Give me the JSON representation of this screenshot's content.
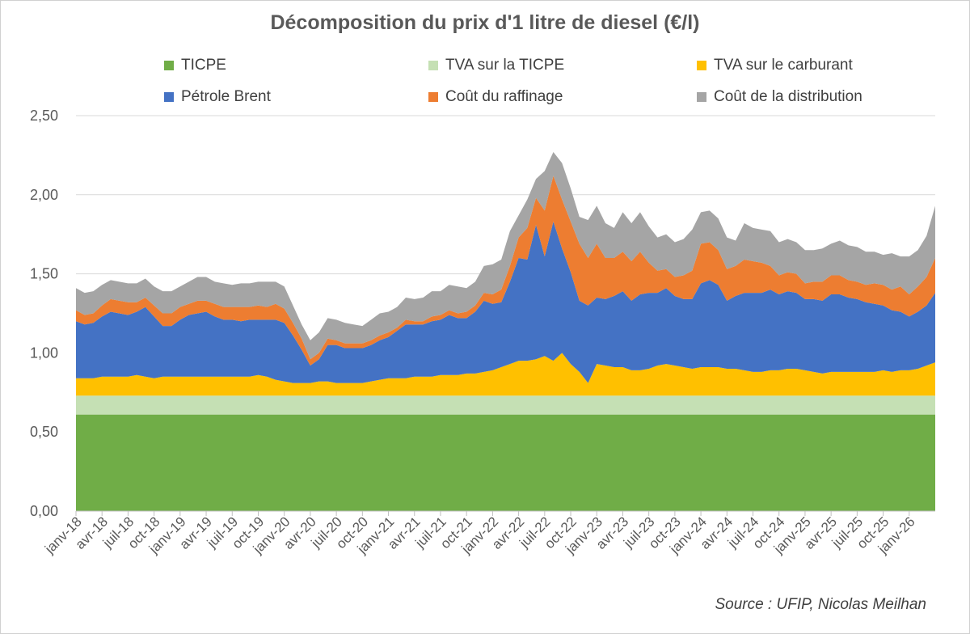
{
  "chart_data": {
    "type": "area",
    "stacked": true,
    "title": "Décomposition du prix d'1 litre de diesel (€/l)",
    "source": "Source : UFIP, Nicolas Meilhan",
    "ylim": [
      0,
      2.5
    ],
    "yticks": [
      "0,00",
      "0,50",
      "1,00",
      "1,50",
      "2,00",
      "2,50"
    ],
    "ytick_values": [
      0,
      0.5,
      1.0,
      1.5,
      2.0,
      2.5
    ],
    "xtick_labels": [
      "janv-18",
      "avr-18",
      "juil-18",
      "oct-18",
      "janv-19",
      "avr-19",
      "juil-19",
      "oct-19",
      "janv-20",
      "avr-20",
      "juil-20",
      "oct-20",
      "janv-21",
      "avr-21",
      "juil-21",
      "oct-21",
      "janv-22",
      "avr-22",
      "juil-22",
      "oct-22",
      "janv-23",
      "avr-23",
      "juil-23",
      "oct-23",
      "janv-24",
      "avr-24",
      "juil-24",
      "oct-24",
      "janv-25",
      "avr-25",
      "juil-25",
      "oct-25",
      "janv-26"
    ],
    "legend_position": "top",
    "series": [
      {
        "name": "TICPE",
        "color": "#70AD47",
        "values": [
          0.61,
          0.61,
          0.61,
          0.61,
          0.61,
          0.61,
          0.61,
          0.61,
          0.61,
          0.61,
          0.61,
          0.61,
          0.61,
          0.61,
          0.61,
          0.61,
          0.61,
          0.61,
          0.61,
          0.61,
          0.61,
          0.61,
          0.61,
          0.61,
          0.61,
          0.61,
          0.61,
          0.61,
          0.61,
          0.61,
          0.61,
          0.61,
          0.61,
          0.61,
          0.61,
          0.61,
          0.61,
          0.61,
          0.61,
          0.61,
          0.61,
          0.61,
          0.61,
          0.61,
          0.61,
          0.61,
          0.61,
          0.61,
          0.61,
          0.61,
          0.61,
          0.61,
          0.61,
          0.61,
          0.61,
          0.61,
          0.61,
          0.61,
          0.61,
          0.61,
          0.61,
          0.61,
          0.61,
          0.61,
          0.61,
          0.61,
          0.61,
          0.61,
          0.61,
          0.61,
          0.61,
          0.61,
          0.61,
          0.61,
          0.61,
          0.61,
          0.61,
          0.61,
          0.61,
          0.61,
          0.61,
          0.61,
          0.61,
          0.61,
          0.61,
          0.61,
          0.61,
          0.61,
          0.61,
          0.61,
          0.61,
          0.61,
          0.61,
          0.61,
          0.61,
          0.61,
          0.61,
          0.61,
          0.61,
          0.61
        ]
      },
      {
        "name": "TVA sur la TICPE",
        "color": "#C5E0B4",
        "values": [
          0.12,
          0.12,
          0.12,
          0.12,
          0.12,
          0.12,
          0.12,
          0.12,
          0.12,
          0.12,
          0.12,
          0.12,
          0.12,
          0.12,
          0.12,
          0.12,
          0.12,
          0.12,
          0.12,
          0.12,
          0.12,
          0.12,
          0.12,
          0.12,
          0.12,
          0.12,
          0.12,
          0.12,
          0.12,
          0.12,
          0.12,
          0.12,
          0.12,
          0.12,
          0.12,
          0.12,
          0.12,
          0.12,
          0.12,
          0.12,
          0.12,
          0.12,
          0.12,
          0.12,
          0.12,
          0.12,
          0.12,
          0.12,
          0.12,
          0.12,
          0.12,
          0.12,
          0.12,
          0.12,
          0.12,
          0.12,
          0.12,
          0.12,
          0.12,
          0.12,
          0.12,
          0.12,
          0.12,
          0.12,
          0.12,
          0.12,
          0.12,
          0.12,
          0.12,
          0.12,
          0.12,
          0.12,
          0.12,
          0.12,
          0.12,
          0.12,
          0.12,
          0.12,
          0.12,
          0.12,
          0.12,
          0.12,
          0.12,
          0.12,
          0.12,
          0.12,
          0.12,
          0.12,
          0.12,
          0.12,
          0.12,
          0.12,
          0.12,
          0.12,
          0.12,
          0.12,
          0.12,
          0.12,
          0.12,
          0.12
        ]
      },
      {
        "name": "TVA sur le carburant",
        "color": "#FFC000",
        "values": [
          0.11,
          0.11,
          0.11,
          0.12,
          0.12,
          0.12,
          0.12,
          0.13,
          0.12,
          0.11,
          0.12,
          0.12,
          0.12,
          0.12,
          0.12,
          0.12,
          0.12,
          0.12,
          0.12,
          0.12,
          0.12,
          0.13,
          0.12,
          0.1,
          0.09,
          0.08,
          0.08,
          0.08,
          0.09,
          0.09,
          0.08,
          0.08,
          0.08,
          0.08,
          0.09,
          0.1,
          0.11,
          0.11,
          0.11,
          0.12,
          0.12,
          0.12,
          0.13,
          0.13,
          0.13,
          0.14,
          0.14,
          0.15,
          0.16,
          0.18,
          0.2,
          0.22,
          0.22,
          0.23,
          0.25,
          0.22,
          0.27,
          0.2,
          0.15,
          0.08,
          0.2,
          0.19,
          0.18,
          0.18,
          0.16,
          0.16,
          0.17,
          0.19,
          0.2,
          0.19,
          0.18,
          0.17,
          0.18,
          0.18,
          0.18,
          0.17,
          0.17,
          0.16,
          0.15,
          0.15,
          0.16,
          0.16,
          0.17,
          0.17,
          0.16,
          0.15,
          0.14,
          0.15,
          0.15,
          0.15,
          0.15,
          0.15,
          0.15,
          0.16,
          0.15,
          0.16,
          0.16,
          0.17,
          0.19,
          0.21
        ]
      },
      {
        "name": "Pétrole Brent",
        "color": "#4472C4",
        "values": [
          0.36,
          0.34,
          0.35,
          0.38,
          0.41,
          0.4,
          0.39,
          0.4,
          0.44,
          0.39,
          0.32,
          0.32,
          0.36,
          0.39,
          0.4,
          0.41,
          0.38,
          0.36,
          0.36,
          0.35,
          0.36,
          0.35,
          0.36,
          0.38,
          0.37,
          0.3,
          0.21,
          0.11,
          0.14,
          0.23,
          0.24,
          0.22,
          0.22,
          0.22,
          0.23,
          0.25,
          0.26,
          0.3,
          0.34,
          0.33,
          0.33,
          0.35,
          0.35,
          0.38,
          0.36,
          0.35,
          0.39,
          0.45,
          0.42,
          0.41,
          0.52,
          0.65,
          0.64,
          0.85,
          0.63,
          0.88,
          0.66,
          0.58,
          0.45,
          0.49,
          0.42,
          0.42,
          0.45,
          0.48,
          0.44,
          0.48,
          0.48,
          0.46,
          0.48,
          0.44,
          0.43,
          0.44,
          0.53,
          0.55,
          0.52,
          0.43,
          0.46,
          0.49,
          0.5,
          0.5,
          0.51,
          0.48,
          0.49,
          0.48,
          0.45,
          0.46,
          0.46,
          0.49,
          0.49,
          0.47,
          0.46,
          0.44,
          0.43,
          0.41,
          0.39,
          0.37,
          0.34,
          0.36,
          0.38,
          0.44
        ]
      },
      {
        "name": "Coût du raffinage",
        "color": "#ED7D31",
        "values": [
          0.07,
          0.06,
          0.06,
          0.07,
          0.08,
          0.08,
          0.08,
          0.06,
          0.06,
          0.07,
          0.08,
          0.08,
          0.08,
          0.07,
          0.08,
          0.07,
          0.08,
          0.08,
          0.08,
          0.09,
          0.08,
          0.09,
          0.08,
          0.1,
          0.09,
          0.08,
          0.07,
          0.04,
          0.04,
          0.04,
          0.03,
          0.03,
          0.03,
          0.03,
          0.03,
          0.03,
          0.03,
          0.02,
          0.03,
          0.02,
          0.02,
          0.03,
          0.03,
          0.03,
          0.03,
          0.04,
          0.04,
          0.05,
          0.06,
          0.08,
          0.1,
          0.13,
          0.2,
          0.17,
          0.29,
          0.29,
          0.31,
          0.32,
          0.36,
          0.3,
          0.34,
          0.26,
          0.24,
          0.25,
          0.25,
          0.27,
          0.19,
          0.14,
          0.12,
          0.12,
          0.15,
          0.18,
          0.25,
          0.24,
          0.22,
          0.2,
          0.19,
          0.21,
          0.2,
          0.19,
          0.15,
          0.12,
          0.12,
          0.12,
          0.1,
          0.11,
          0.12,
          0.12,
          0.12,
          0.11,
          0.11,
          0.11,
          0.13,
          0.13,
          0.13,
          0.16,
          0.14,
          0.16,
          0.18,
          0.22
        ]
      },
      {
        "name": "Coût de la distribution",
        "color": "#A5A5A5",
        "values": [
          0.14,
          0.14,
          0.14,
          0.13,
          0.12,
          0.12,
          0.12,
          0.12,
          0.12,
          0.12,
          0.14,
          0.14,
          0.13,
          0.14,
          0.15,
          0.15,
          0.14,
          0.15,
          0.14,
          0.15,
          0.15,
          0.15,
          0.16,
          0.14,
          0.14,
          0.11,
          0.09,
          0.12,
          0.13,
          0.13,
          0.13,
          0.13,
          0.12,
          0.11,
          0.13,
          0.14,
          0.13,
          0.13,
          0.14,
          0.14,
          0.15,
          0.16,
          0.15,
          0.16,
          0.17,
          0.15,
          0.15,
          0.17,
          0.19,
          0.19,
          0.22,
          0.14,
          0.18,
          0.12,
          0.25,
          0.15,
          0.23,
          0.21,
          0.17,
          0.24,
          0.24,
          0.22,
          0.19,
          0.25,
          0.24,
          0.25,
          0.23,
          0.21,
          0.22,
          0.22,
          0.23,
          0.26,
          0.2,
          0.2,
          0.2,
          0.2,
          0.16,
          0.23,
          0.21,
          0.21,
          0.22,
          0.21,
          0.21,
          0.2,
          0.21,
          0.2,
          0.21,
          0.2,
          0.22,
          0.22,
          0.22,
          0.21,
          0.2,
          0.19,
          0.23,
          0.19,
          0.24,
          0.23,
          0.26,
          0.33
        ]
      }
    ]
  }
}
